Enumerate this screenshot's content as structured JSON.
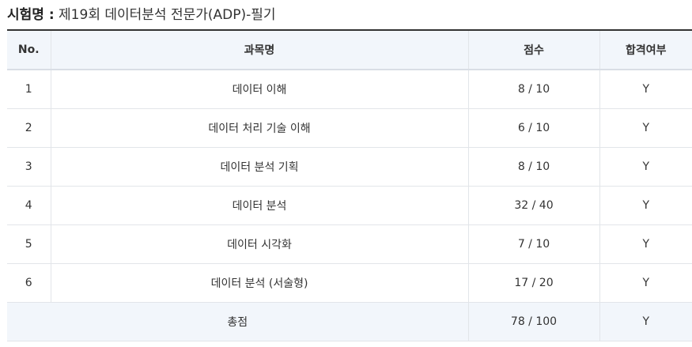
{
  "exam": {
    "label": "시험명 :",
    "name": "제19회 데이터분석 전문가(ADP)-필기"
  },
  "table": {
    "headers": {
      "no": "No.",
      "subject": "과목명",
      "score": "점수",
      "pass": "합격여부"
    },
    "rows": [
      {
        "no": "1",
        "subject": "데이터 이해",
        "score": "8 / 10",
        "pass": "Y"
      },
      {
        "no": "2",
        "subject": "데이터 처리 기술 이해",
        "score": "6 / 10",
        "pass": "Y"
      },
      {
        "no": "3",
        "subject": "데이터 분석 기획",
        "score": "8 / 10",
        "pass": "Y"
      },
      {
        "no": "4",
        "subject": "데이터 분석",
        "score": "32 / 40",
        "pass": "Y"
      },
      {
        "no": "5",
        "subject": "데이터 시각화",
        "score": "7 / 10",
        "pass": "Y"
      },
      {
        "no": "6",
        "subject": "데이터 분석 (서술형)",
        "score": "17 / 20",
        "pass": "Y"
      }
    ],
    "total": {
      "label": "총점",
      "score": "78 / 100",
      "pass": "Y"
    }
  }
}
